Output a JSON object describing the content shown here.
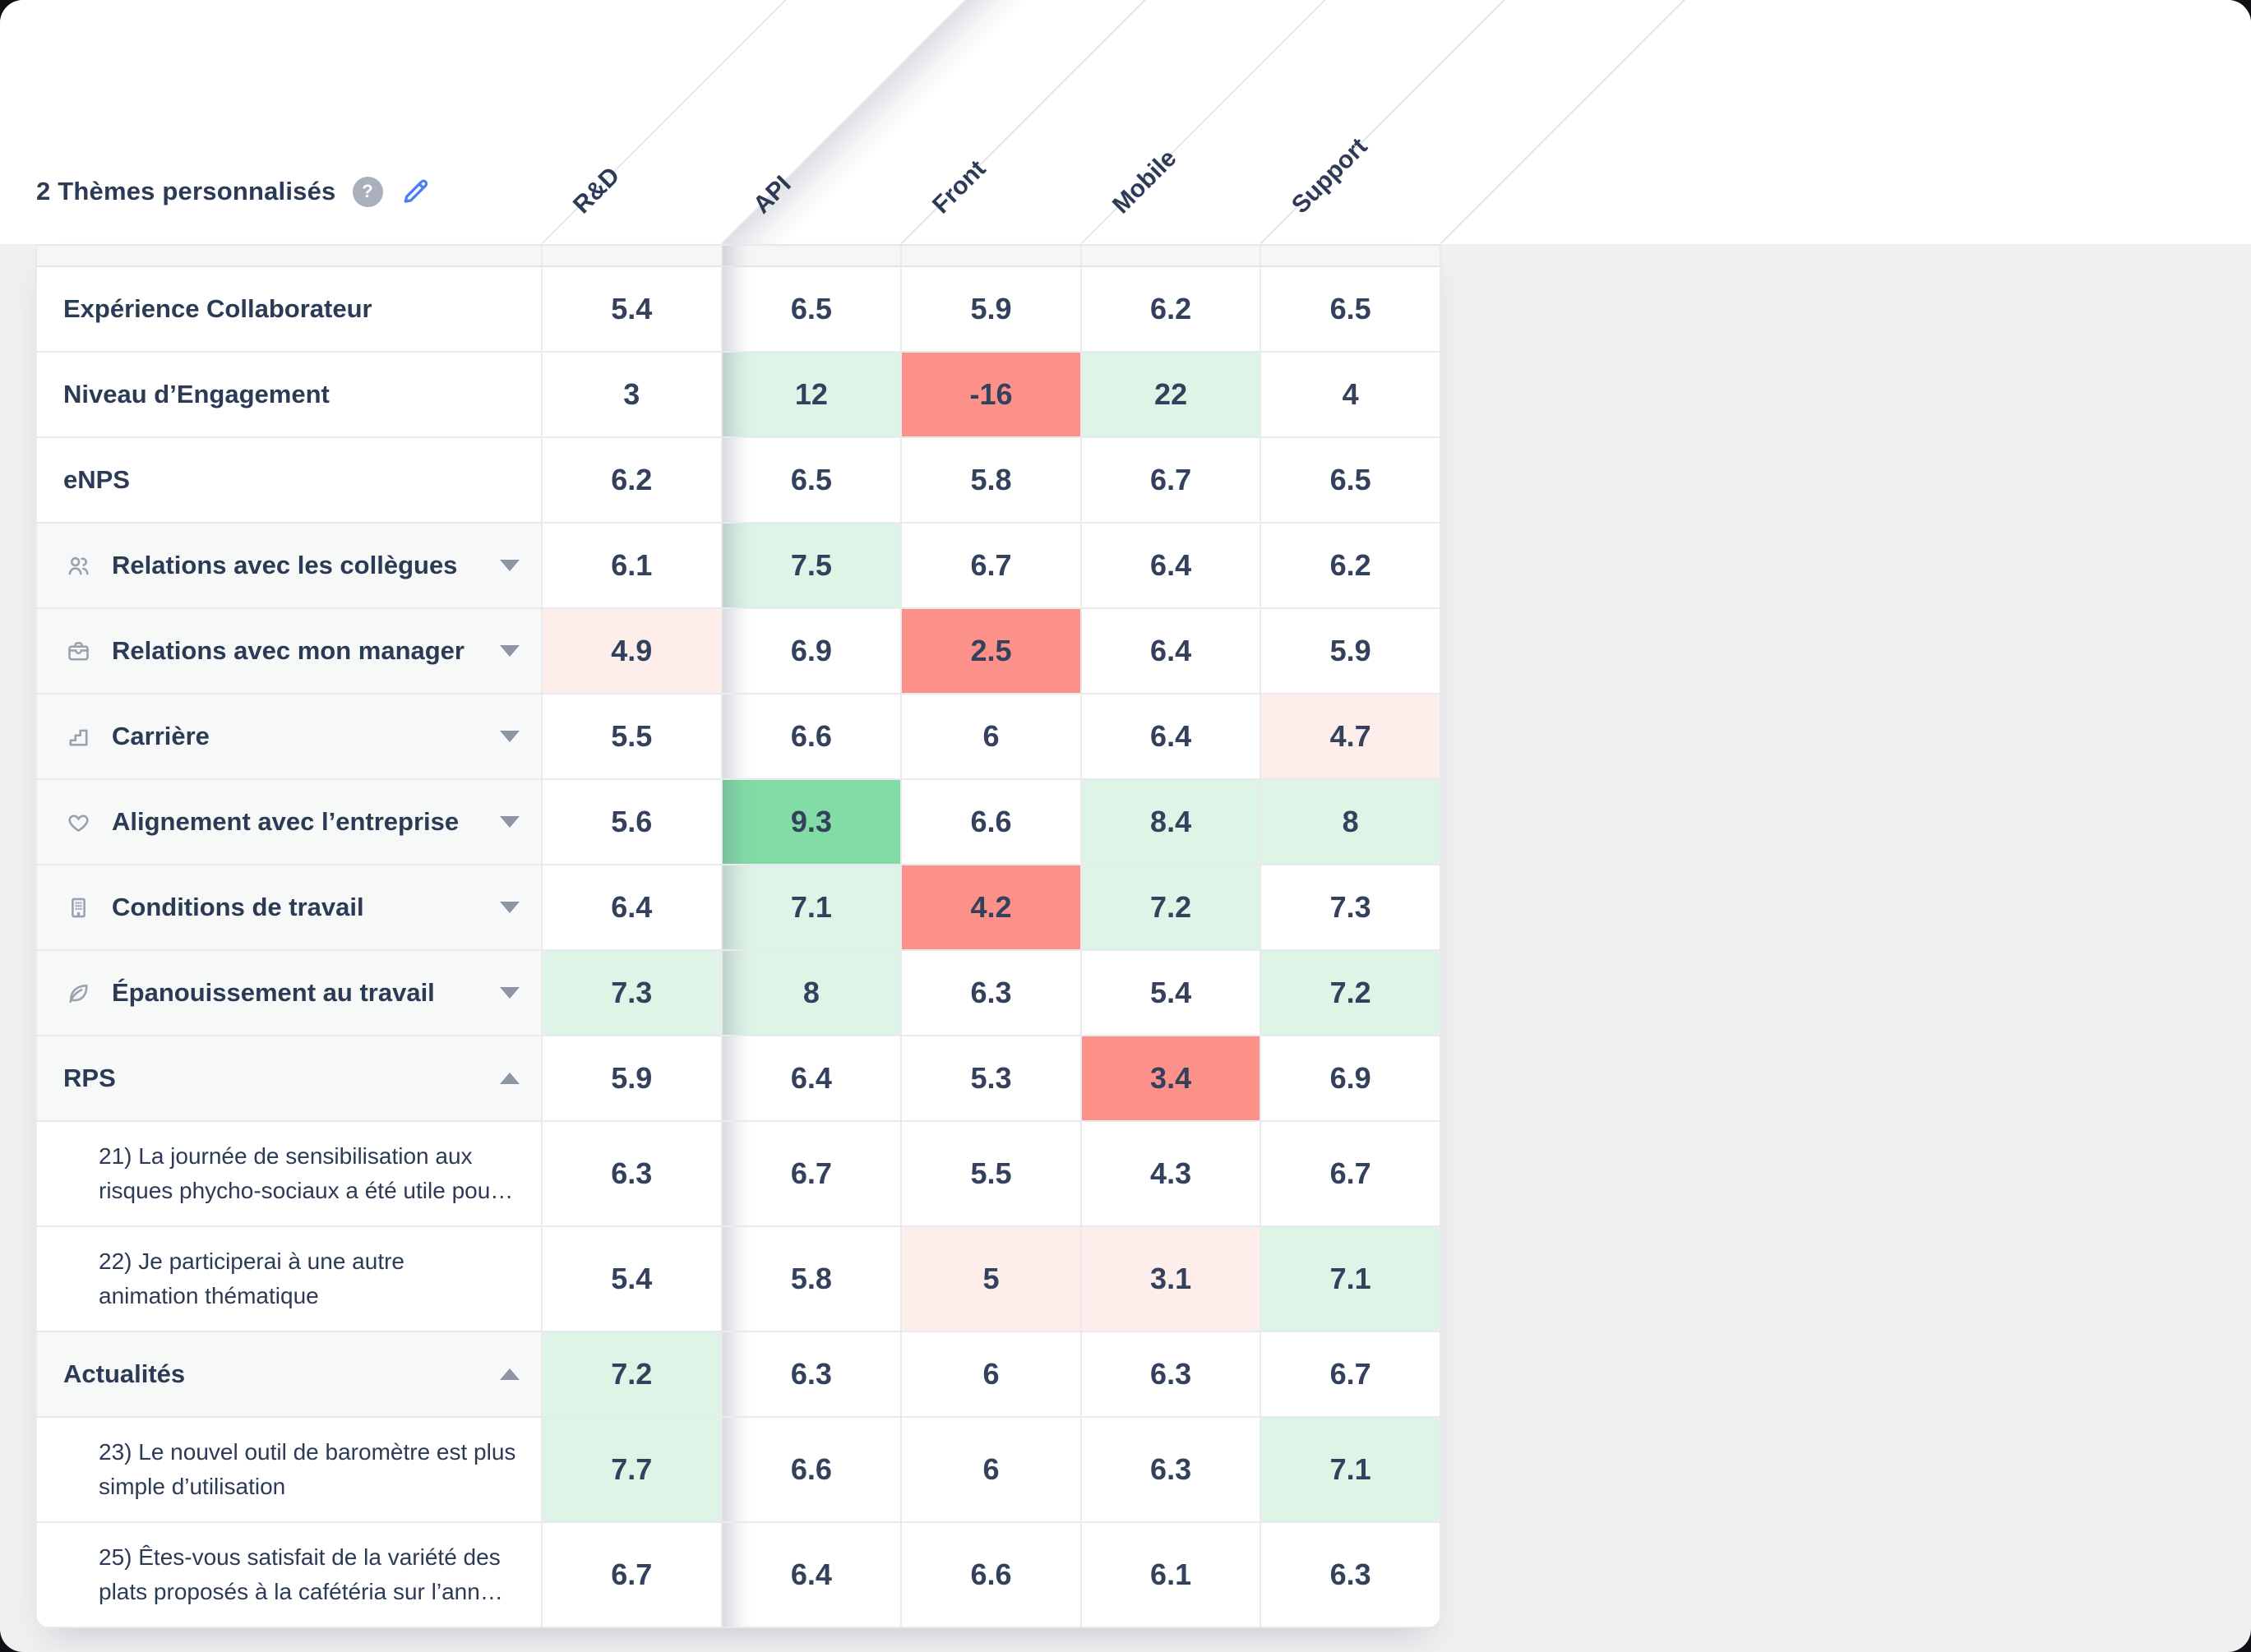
{
  "header": {
    "title": "2 Thèmes personnalisés",
    "help_label": "?",
    "columns": [
      "R&D",
      "API",
      "Front",
      "Mobile",
      "Support"
    ],
    "highlighted_column": "API"
  },
  "colors": {
    "accent_blue": "#4d7ef2",
    "text_navy": "#2b3a55",
    "icon_gray": "#9aa2b0",
    "green_strong": "#82dca5",
    "green_light": "#def4e7",
    "red_strong": "#fc918a",
    "red_light": "#fdedeb",
    "page_gray": "#f0f0f2"
  },
  "table": {
    "rows": [
      {
        "type": "summary",
        "label_lines": [
          "Expérience Collaborateur"
        ],
        "values": [
          {
            "v": "5.4",
            "tone": ""
          },
          {
            "v": "6.5",
            "tone": ""
          },
          {
            "v": "5.9",
            "tone": ""
          },
          {
            "v": "6.2",
            "tone": ""
          },
          {
            "v": "6.5",
            "tone": ""
          }
        ]
      },
      {
        "type": "summary",
        "label_lines": [
          "Niveau d’Engagement"
        ],
        "values": [
          {
            "v": "3",
            "tone": ""
          },
          {
            "v": "12",
            "tone": "g1"
          },
          {
            "v": "-16",
            "tone": "r2"
          },
          {
            "v": "22",
            "tone": "g1"
          },
          {
            "v": "4",
            "tone": ""
          }
        ]
      },
      {
        "type": "summary",
        "label_lines": [
          "eNPS"
        ],
        "values": [
          {
            "v": "6.2",
            "tone": ""
          },
          {
            "v": "6.5",
            "tone": ""
          },
          {
            "v": "5.8",
            "tone": ""
          },
          {
            "v": "6.7",
            "tone": ""
          },
          {
            "v": "6.5",
            "tone": ""
          }
        ]
      },
      {
        "type": "theme",
        "icon": "people-icon",
        "expand": "collapsed",
        "label_lines": [
          "Relations avec les collègues"
        ],
        "values": [
          {
            "v": "6.1",
            "tone": ""
          },
          {
            "v": "7.5",
            "tone": "g1"
          },
          {
            "v": "6.7",
            "tone": ""
          },
          {
            "v": "6.4",
            "tone": ""
          },
          {
            "v": "6.2",
            "tone": ""
          }
        ]
      },
      {
        "type": "theme",
        "icon": "briefcase-icon",
        "expand": "collapsed",
        "label_lines": [
          "Relations avec mon manager"
        ],
        "values": [
          {
            "v": "4.9",
            "tone": "r1"
          },
          {
            "v": "6.9",
            "tone": ""
          },
          {
            "v": "2.5",
            "tone": "r2"
          },
          {
            "v": "6.4",
            "tone": ""
          },
          {
            "v": "5.9",
            "tone": ""
          }
        ]
      },
      {
        "type": "theme",
        "icon": "stairs-icon",
        "expand": "collapsed",
        "label_lines": [
          "Carrière"
        ],
        "values": [
          {
            "v": "5.5",
            "tone": ""
          },
          {
            "v": "6.6",
            "tone": ""
          },
          {
            "v": "6",
            "tone": ""
          },
          {
            "v": "6.4",
            "tone": ""
          },
          {
            "v": "4.7",
            "tone": "r1"
          }
        ]
      },
      {
        "type": "theme",
        "icon": "heart-icon",
        "expand": "collapsed",
        "label_lines": [
          "Alignement avec l’entreprise"
        ],
        "values": [
          {
            "v": "5.6",
            "tone": ""
          },
          {
            "v": "9.3",
            "tone": "g2"
          },
          {
            "v": "6.6",
            "tone": ""
          },
          {
            "v": "8.4",
            "tone": "g1"
          },
          {
            "v": "8",
            "tone": "g1"
          }
        ]
      },
      {
        "type": "theme",
        "icon": "building-icon",
        "expand": "collapsed",
        "label_lines": [
          "Conditions de travail"
        ],
        "values": [
          {
            "v": "6.4",
            "tone": ""
          },
          {
            "v": "7.1",
            "tone": "g1"
          },
          {
            "v": "4.2",
            "tone": "r2"
          },
          {
            "v": "7.2",
            "tone": "g1"
          },
          {
            "v": "7.3",
            "tone": ""
          }
        ]
      },
      {
        "type": "theme",
        "icon": "leaf-icon",
        "expand": "collapsed",
        "label_lines": [
          "Épanouissement au travail"
        ],
        "values": [
          {
            "v": "7.3",
            "tone": "g1"
          },
          {
            "v": "8",
            "tone": "g1"
          },
          {
            "v": "6.3",
            "tone": ""
          },
          {
            "v": "5.4",
            "tone": ""
          },
          {
            "v": "7.2",
            "tone": "g1"
          }
        ]
      },
      {
        "type": "category",
        "expand": "expanded",
        "label_lines": [
          "RPS"
        ],
        "values": [
          {
            "v": "5.9",
            "tone": ""
          },
          {
            "v": "6.4",
            "tone": ""
          },
          {
            "v": "5.3",
            "tone": ""
          },
          {
            "v": "3.4",
            "tone": "r2"
          },
          {
            "v": "6.9",
            "tone": ""
          }
        ]
      },
      {
        "type": "question",
        "label_lines": [
          "21) La journée de sensibilisation aux",
          "risques phycho-sociaux a été utile pou…"
        ],
        "values": [
          {
            "v": "6.3",
            "tone": ""
          },
          {
            "v": "6.7",
            "tone": ""
          },
          {
            "v": "5.5",
            "tone": ""
          },
          {
            "v": "4.3",
            "tone": ""
          },
          {
            "v": "6.7",
            "tone": ""
          }
        ]
      },
      {
        "type": "question",
        "label_lines": [
          "22) Je participerai à une autre",
          "animation thématique"
        ],
        "values": [
          {
            "v": "5.4",
            "tone": ""
          },
          {
            "v": "5.8",
            "tone": ""
          },
          {
            "v": "5",
            "tone": "r1"
          },
          {
            "v": "3.1",
            "tone": "r1"
          },
          {
            "v": "7.1",
            "tone": "g1"
          }
        ]
      },
      {
        "type": "category",
        "expand": "expanded",
        "label_lines": [
          "Actualités"
        ],
        "values": [
          {
            "v": "7.2",
            "tone": "g1"
          },
          {
            "v": "6.3",
            "tone": ""
          },
          {
            "v": "6",
            "tone": ""
          },
          {
            "v": "6.3",
            "tone": ""
          },
          {
            "v": "6.7",
            "tone": ""
          }
        ]
      },
      {
        "type": "question",
        "label_lines": [
          "23) Le nouvel outil de baromètre est plus",
          "simple d’utilisation"
        ],
        "values": [
          {
            "v": "7.7",
            "tone": "g1"
          },
          {
            "v": "6.6",
            "tone": ""
          },
          {
            "v": "6",
            "tone": ""
          },
          {
            "v": "6.3",
            "tone": ""
          },
          {
            "v": "7.1",
            "tone": "g1"
          }
        ]
      },
      {
        "type": "question",
        "label_lines": [
          "25) Êtes-vous satisfait de la variété des",
          "plats proposés à la cafétéria sur l’ann…"
        ],
        "values": [
          {
            "v": "6.7",
            "tone": ""
          },
          {
            "v": "6.4",
            "tone": ""
          },
          {
            "v": "6.6",
            "tone": ""
          },
          {
            "v": "6.1",
            "tone": ""
          },
          {
            "v": "6.3",
            "tone": ""
          }
        ]
      }
    ]
  }
}
